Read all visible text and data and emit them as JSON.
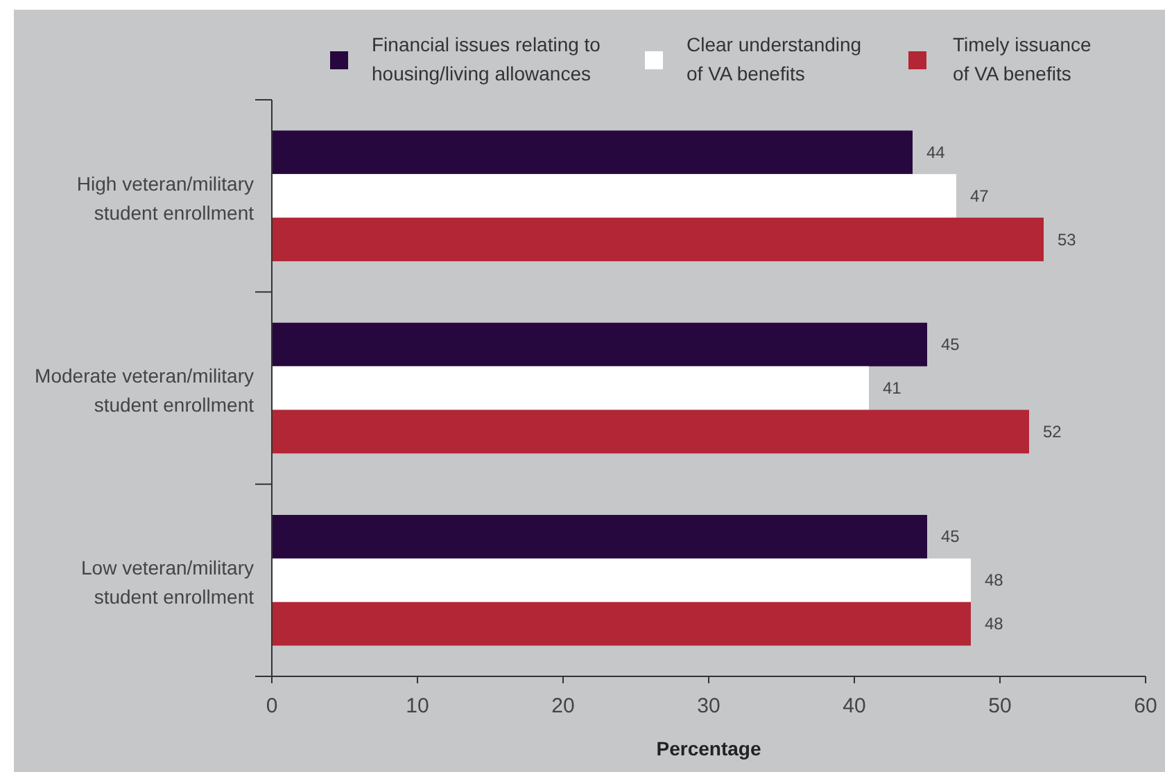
{
  "chart_data": {
    "type": "bar",
    "orientation": "horizontal",
    "xlabel": "Percentage",
    "categories": [
      "High veteran/military student enrollment",
      "Moderate veteran/military student enrollment",
      "Low veteran/military student enrollment"
    ],
    "series": [
      {
        "name": "Financial issues relating to housing/living allowances",
        "color": "#26083f",
        "values": [
          44,
          45,
          45
        ]
      },
      {
        "name": "Clear understanding of VA benefits",
        "color": "#ffffff",
        "values": [
          47,
          41,
          48
        ]
      },
      {
        "name": "Timely issuance of VA benefits",
        "color": "#b22635",
        "values": [
          53,
          52,
          48
        ]
      }
    ],
    "xlim": [
      0,
      60
    ],
    "xticks": [
      0,
      10,
      20,
      30,
      40,
      50,
      60
    ],
    "data_labels": true,
    "legend": "top",
    "grid": false
  }
}
